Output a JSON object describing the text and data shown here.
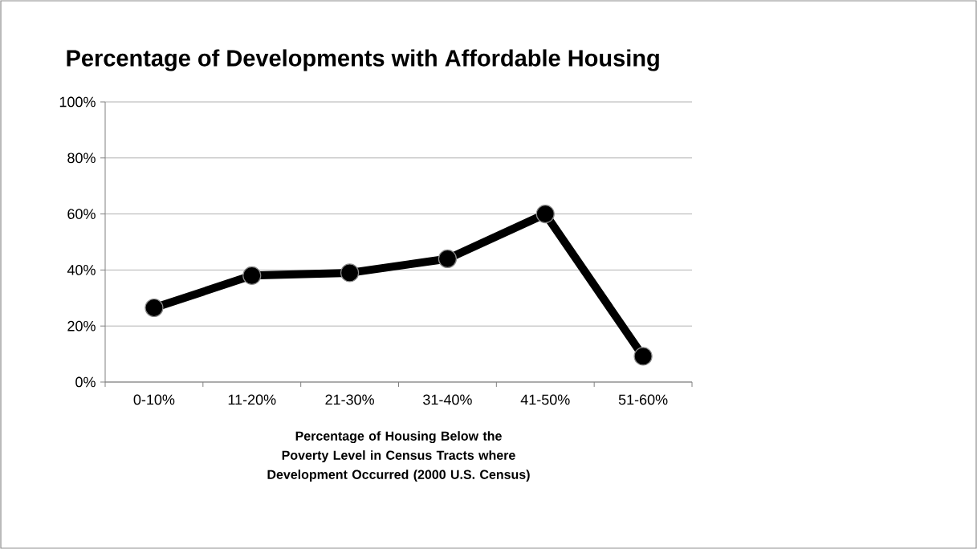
{
  "chart_data": {
    "type": "line",
    "title": "Percentage of Developments with Affordable Housing",
    "xlabel": "Percentage of Housing Below the Poverty Level in Census Tracts where Development Occurred (2000 U.S. Census)",
    "categories": [
      "0-10%",
      "11-20%",
      "21-30%",
      "31-40%",
      "41-50%",
      "51-60%"
    ],
    "values": [
      26.5,
      38,
      39,
      44,
      60,
      9.2
    ],
    "color": "#000000",
    "marker": "circle",
    "line_style": "solid",
    "grid": "y",
    "ylim": [
      0,
      100
    ],
    "yticks": [
      {
        "value": 0,
        "label": "0%"
      },
      {
        "value": 20,
        "label": "20%"
      },
      {
        "value": 40,
        "label": "40%"
      },
      {
        "value": 60,
        "label": "60%"
      },
      {
        "value": 80,
        "label": "80%"
      },
      {
        "value": 100,
        "label": "100%"
      }
    ]
  }
}
